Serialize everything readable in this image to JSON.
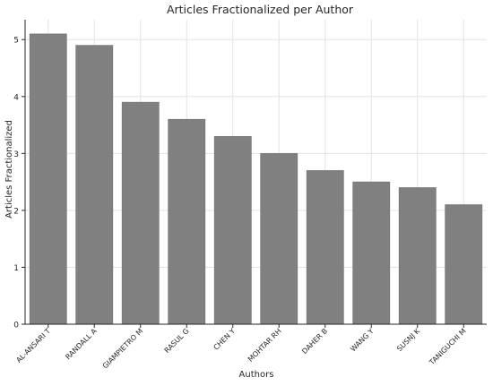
{
  "chart_data": {
    "type": "bar",
    "title": "Articles Fractionalized per Author",
    "xlabel": "Authors",
    "ylabel": "Articles Fractionalized",
    "categories": [
      "AL-ANSARI T",
      "RANDALL A",
      "GIAMPIETRO M",
      "RASUL G",
      "CHEN Y",
      "MOHTAR RH",
      "DAHER B",
      "WANG Y",
      "SUSNJ K",
      "TANIGUCHI M"
    ],
    "values": [
      5.1,
      4.9,
      3.9,
      3.6,
      3.3,
      3.0,
      2.7,
      2.5,
      2.4,
      2.1
    ],
    "ylim": [
      0,
      5.35
    ],
    "yticks": [
      0,
      1,
      2,
      3,
      4,
      5
    ],
    "grid": true,
    "bar_color": "#808080",
    "bar_edge_color": "#6e6e6e",
    "grid_color": "#e3e3e3",
    "axis_color": "#262626"
  }
}
